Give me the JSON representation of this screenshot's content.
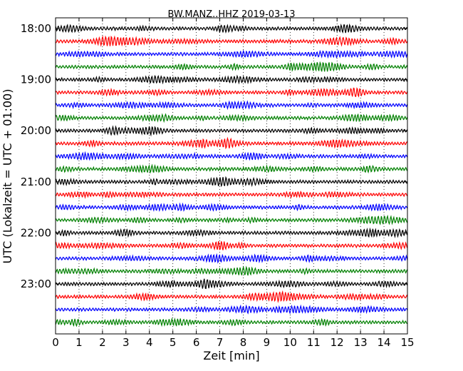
{
  "chart_data": {
    "type": "line",
    "subtype": "dayplot-seismogram",
    "title": "BW.MANZ..HHZ 2019-03-13",
    "xlabel": "Zeit  [min]",
    "ylabel": "UTC (Lokalzeit = UTC + 01:00)",
    "xlim": [
      0,
      15
    ],
    "x_ticks": [
      "0",
      "1",
      "2",
      "3",
      "4",
      "5",
      "6",
      "7",
      "8",
      "9",
      "10",
      "11",
      "12",
      "13",
      "14",
      "15"
    ],
    "y_ticks": [
      "18:00",
      "19:00",
      "20:00",
      "21:00",
      "22:00",
      "23:00"
    ],
    "trace_interval_min": 15,
    "trace_colors": [
      "#000000",
      "#ff0000",
      "#0000ff",
      "#008000"
    ],
    "trace_count": 24,
    "grid": "vertical dotted lines at each minute",
    "legend": "none"
  }
}
